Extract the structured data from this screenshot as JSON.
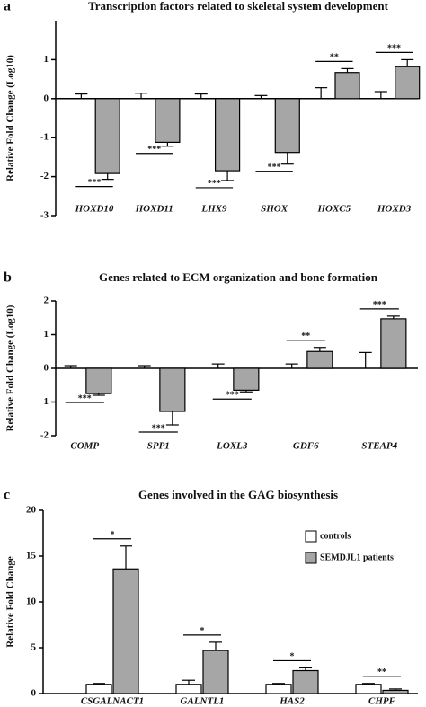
{
  "chart_data": [
    {
      "type": "bar",
      "panel": "a",
      "title": "Transcription factors related to skeletal system development",
      "y_label": "Relative Fold Change  (Log10)",
      "categories": [
        "HOXD10",
        "HOXD11",
        "LHX9",
        "SHOX",
        "HOXC5",
        "HOXD3"
      ],
      "series": [
        {
          "color": "#ffffff",
          "values": [
            0,
            0,
            0,
            0,
            0,
            0
          ],
          "errors": [
            0.12,
            0.14,
            0.12,
            0.08,
            0.28,
            0.18
          ]
        },
        {
          "color": "#a6a6a6",
          "values": [
            -1.92,
            -1.12,
            -1.85,
            -1.38,
            0.67,
            0.82
          ],
          "errors": [
            0.15,
            0.1,
            0.25,
            0.3,
            0.1,
            0.18
          ]
        }
      ],
      "significance": [
        "***",
        "***",
        "***",
        "***",
        "**",
        "***"
      ],
      "ylim": [
        -3,
        2
      ],
      "yticks": [
        -3,
        -2,
        -1,
        0,
        1
      ]
    },
    {
      "type": "bar",
      "panel": "b",
      "title": "Genes related to ECM organization and bone formation",
      "y_label": "Relative Fold Change  (Log10)",
      "categories": [
        "COMP",
        "SPP1",
        "LOXL3",
        "GDF6",
        "STEAP4"
      ],
      "series": [
        {
          "color": "#ffffff",
          "values": [
            0,
            0,
            0,
            0,
            0
          ],
          "errors": [
            0.08,
            0.08,
            0.13,
            0.13,
            0.47
          ]
        },
        {
          "color": "#a6a6a6",
          "values": [
            -0.75,
            -1.28,
            -0.65,
            0.5,
            1.47
          ],
          "errors": [
            0.05,
            0.4,
            0.05,
            0.12,
            0.08
          ]
        }
      ],
      "significance": [
        "***",
        "***",
        "***",
        "**",
        "***"
      ],
      "ylim": [
        -2,
        2
      ],
      "yticks": [
        -2,
        -1,
        0,
        1,
        2
      ]
    },
    {
      "type": "bar",
      "panel": "c",
      "title": "Genes involved in the GAG biosynthesis",
      "y_label": "Relative Fold Change",
      "categories": [
        "CSGALNACT1",
        "GALNTL1",
        "HAS2",
        "CHPF"
      ],
      "series": [
        {
          "name": "controls",
          "color": "#ffffff",
          "values": [
            1.0,
            1.0,
            1.0,
            1.0
          ],
          "errors": [
            0.1,
            0.45,
            0.1,
            0.1
          ]
        },
        {
          "name": "SEMDJL1 patients",
          "color": "#a6a6a6",
          "values": [
            13.6,
            4.7,
            2.5,
            0.35
          ],
          "errors": [
            2.5,
            0.9,
            0.3,
            0.15
          ]
        }
      ],
      "significance": [
        "*",
        "*",
        "*",
        "**"
      ],
      "ylim": [
        0,
        20
      ],
      "yticks": [
        0,
        5,
        10,
        15,
        20
      ],
      "legend": "upper right"
    }
  ]
}
